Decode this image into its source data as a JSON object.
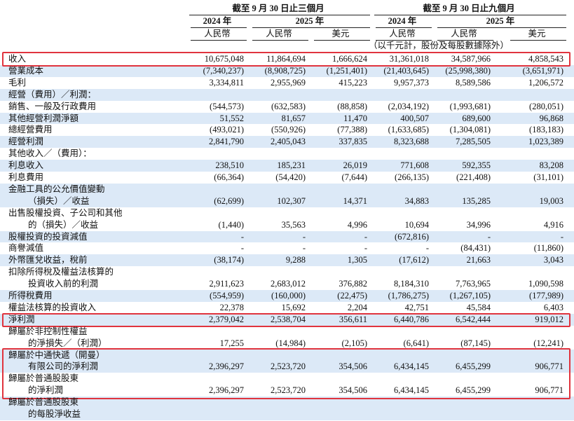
{
  "header": {
    "periods": [
      "截至 9 月 30 日止三個月",
      "截至 9 月 30 日止九個月"
    ],
    "years": [
      "2024 年",
      "2025 年",
      "2024 年",
      "2025 年"
    ],
    "currencies": [
      "人民幣",
      "人民幣",
      "美元",
      "人民幣",
      "人民幣",
      "美元"
    ],
    "note": "（以千元計，股份及每股數據除外）"
  },
  "rows": [
    {
      "label": [
        "收入"
      ],
      "values": [
        "10,675,048",
        "11,864,694",
        "1,666,624",
        "31,361,018",
        "34,587,966",
        "4,858,543"
      ]
    },
    {
      "label": [
        "營業成本"
      ],
      "values": [
        "(7,340,237)",
        "(8,908,725)",
        "(1,251,401)",
        "(21,403,645)",
        "(25,998,380)",
        "(3,651,971)"
      ]
    },
    {
      "label": [
        "毛利"
      ],
      "values": [
        "3,334,811",
        "2,955,969",
        "415,223",
        "9,957,373",
        "8,589,586",
        "1,206,572"
      ]
    },
    {
      "label": [
        "經營（費用）／利潤："
      ]
    },
    {
      "label": [
        "銷售、一般及行政費用"
      ],
      "values": [
        "(544,573)",
        "(632,583)",
        "(88,858)",
        "(2,034,192)",
        "(1,993,681)",
        "(280,051)"
      ]
    },
    {
      "label": [
        "其他經營利潤淨額"
      ],
      "values": [
        "51,552",
        "81,657",
        "11,470",
        "400,507",
        "689,600",
        "96,868"
      ]
    },
    {
      "label": [
        "總經營費用"
      ],
      "values": [
        "(493,021)",
        "(550,926)",
        "(77,388)",
        "(1,633,685)",
        "(1,304,081)",
        "(183,183)"
      ]
    },
    {
      "label": [
        "經營利潤"
      ],
      "values": [
        "2,841,790",
        "2,405,043",
        "337,835",
        "8,323,688",
        "7,285,505",
        "1,023,389"
      ]
    },
    {
      "label": [
        "其他收入／（費用）："
      ]
    },
    {
      "label": [
        "利息收入"
      ],
      "values": [
        "238,510",
        "185,231",
        "26,019",
        "771,608",
        "592,355",
        "83,208"
      ]
    },
    {
      "label": [
        "利息費用"
      ],
      "values": [
        "(66,364)",
        "(54,420)",
        "(7,644)",
        "(266,135)",
        "(221,408)",
        "(31,101)"
      ]
    },
    {
      "label": [
        "金融工具的公允價值變動",
        "（損失）／收益"
      ],
      "values": [
        "(62,699)",
        "102,307",
        "14,371",
        "34,883",
        "135,285",
        "19,003"
      ]
    },
    {
      "label": [
        "出售股權投資、子公司和其他",
        "的（損失）／收益"
      ],
      "values": [
        "(1,440)",
        "35,563",
        "4,996",
        "10,694",
        "34,996",
        "4,916"
      ]
    },
    {
      "label": [
        "股權投資的投資減值"
      ],
      "values": [
        "-",
        "-",
        "-",
        "(672,816)",
        "-",
        "-"
      ]
    },
    {
      "label": [
        "商譽減值"
      ],
      "values": [
        "-",
        "-",
        "-",
        "-",
        "(84,431)",
        "(11,860)"
      ]
    },
    {
      "label": [
        "外幣匯兌收益，稅前"
      ],
      "values": [
        "(38,174)",
        "9,288",
        "1,305",
        "(17,612)",
        "21,663",
        "3,043"
      ]
    },
    {
      "label": [
        "扣除所得稅及權益法核算的",
        "投資收入前的利潤"
      ],
      "values": [
        "2,911,623",
        "2,683,012",
        "376,882",
        "8,184,310",
        "7,763,965",
        "1,090,598"
      ]
    },
    {
      "label": [
        "所得稅費用"
      ],
      "values": [
        "(554,959)",
        "(160,000)",
        "(22,475)",
        "(1,786,275)",
        "(1,267,105)",
        "(177,989)"
      ]
    },
    {
      "label": [
        "權益法核算的投資收入"
      ],
      "values": [
        "22,378",
        "15,692",
        "2,204",
        "42,751",
        "45,584",
        "6,403"
      ]
    },
    {
      "label": [
        "淨利潤"
      ],
      "values": [
        "2,379,042",
        "2,538,704",
        "356,611",
        "6,440,786",
        "6,542,444",
        "919,012"
      ]
    },
    {
      "label": [
        "歸屬於非控制性權益",
        "的淨損失／（利潤）"
      ],
      "values": [
        "17,255",
        "(14,984)",
        "(2,105)",
        "(6,641)",
        "(87,145)",
        "(12,241)"
      ]
    },
    {
      "label": [
        "歸屬於中通快遞（開曼）",
        "有限公司的淨利潤"
      ],
      "values": [
        "2,396,297",
        "2,523,720",
        "354,506",
        "6,434,145",
        "6,455,299",
        "906,771"
      ]
    },
    {
      "label": [
        "歸屬於普通股股東",
        "的淨利潤"
      ],
      "values": [
        "2,396,297",
        "2,523,720",
        "354,506",
        "6,434,145",
        "6,455,299",
        "906,771"
      ]
    },
    {
      "label": [
        "歸屬於普通股股東",
        "的每股淨收益"
      ]
    }
  ]
}
